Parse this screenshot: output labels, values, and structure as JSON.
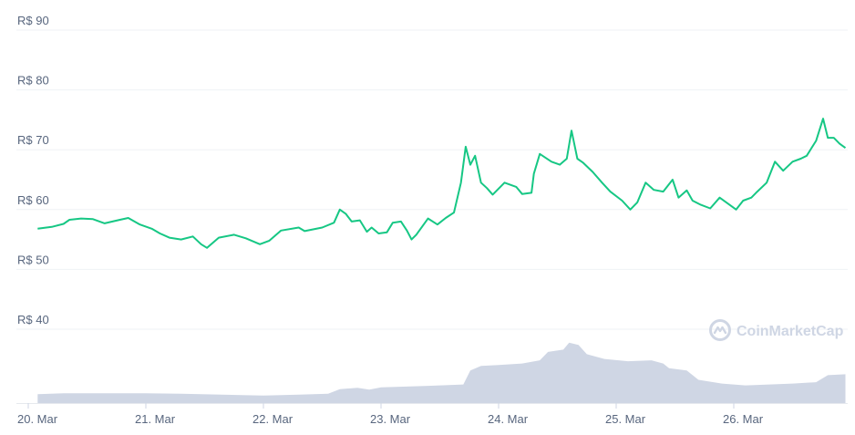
{
  "watermark": {
    "text": "CoinMarketCap",
    "icon": "coinmarketcap-logo-icon"
  },
  "colors": {
    "line": "#16c784",
    "volume": "#cfd6e4",
    "grid": "#eff2f5",
    "text": "#58667e"
  },
  "chart_data": {
    "type": "line",
    "title": "",
    "xlabel": "",
    "ylabel": "",
    "ylim": [
      30,
      90
    ],
    "grid": true,
    "y_ticks": [
      {
        "value": 40,
        "label": "R$ 40"
      },
      {
        "value": 50,
        "label": "R$ 50"
      },
      {
        "value": 60,
        "label": "R$ 60"
      },
      {
        "value": 70,
        "label": "R$ 70"
      },
      {
        "value": 80,
        "label": "R$ 80"
      },
      {
        "value": 90,
        "label": "R$ 90"
      }
    ],
    "x_ticks": [
      "20. Mar",
      "21. Mar",
      "22. Mar",
      "23. Mar",
      "24. Mar",
      "25. Mar",
      "26. Mar"
    ],
    "x_range_days": [
      20.08,
      26.95
    ],
    "series": [
      {
        "type": "line",
        "points": [
          [
            20.08,
            56.8
          ],
          [
            20.2,
            57.1
          ],
          [
            20.3,
            57.6
          ],
          [
            20.35,
            58.3
          ],
          [
            20.45,
            58.5
          ],
          [
            20.55,
            58.4
          ],
          [
            20.65,
            57.7
          ],
          [
            20.78,
            58.3
          ],
          [
            20.85,
            58.6
          ],
          [
            20.95,
            57.5
          ],
          [
            21.05,
            56.8
          ],
          [
            21.12,
            56.0
          ],
          [
            21.2,
            55.3
          ],
          [
            21.3,
            55.0
          ],
          [
            21.4,
            55.5
          ],
          [
            21.47,
            54.2
          ],
          [
            21.52,
            53.6
          ],
          [
            21.62,
            55.3
          ],
          [
            21.75,
            55.8
          ],
          [
            21.85,
            55.2
          ],
          [
            21.97,
            54.2
          ],
          [
            22.05,
            54.8
          ],
          [
            22.15,
            56.5
          ],
          [
            22.3,
            57.0
          ],
          [
            22.35,
            56.4
          ],
          [
            22.5,
            57.0
          ],
          [
            22.6,
            57.8
          ],
          [
            22.65,
            60.0
          ],
          [
            22.7,
            59.3
          ],
          [
            22.75,
            58.0
          ],
          [
            22.82,
            58.2
          ],
          [
            22.88,
            56.3
          ],
          [
            22.92,
            57.0
          ],
          [
            22.98,
            56.0
          ],
          [
            23.05,
            56.2
          ],
          [
            23.1,
            57.8
          ],
          [
            23.17,
            58.0
          ],
          [
            23.22,
            56.5
          ],
          [
            23.26,
            55.0
          ],
          [
            23.3,
            55.8
          ],
          [
            23.4,
            58.5
          ],
          [
            23.48,
            57.5
          ],
          [
            23.55,
            58.6
          ],
          [
            23.62,
            59.5
          ],
          [
            23.68,
            64.5
          ],
          [
            23.72,
            70.5
          ],
          [
            23.76,
            67.5
          ],
          [
            23.8,
            69.0
          ],
          [
            23.85,
            64.5
          ],
          [
            23.9,
            63.6
          ],
          [
            23.95,
            62.5
          ],
          [
            24.05,
            64.5
          ],
          [
            24.15,
            63.8
          ],
          [
            24.2,
            62.6
          ],
          [
            24.28,
            62.8
          ],
          [
            24.3,
            66.0
          ],
          [
            24.35,
            69.3
          ],
          [
            24.45,
            68.0
          ],
          [
            24.52,
            67.5
          ],
          [
            24.58,
            68.5
          ],
          [
            24.62,
            73.2
          ],
          [
            24.67,
            68.5
          ],
          [
            24.72,
            67.8
          ],
          [
            24.8,
            66.3
          ],
          [
            24.88,
            64.5
          ],
          [
            24.95,
            63.0
          ],
          [
            25.05,
            61.5
          ],
          [
            25.12,
            60.0
          ],
          [
            25.18,
            61.2
          ],
          [
            25.25,
            64.5
          ],
          [
            25.32,
            63.3
          ],
          [
            25.4,
            63.0
          ],
          [
            25.48,
            65.0
          ],
          [
            25.53,
            62.0
          ],
          [
            25.6,
            63.2
          ],
          [
            25.65,
            61.5
          ],
          [
            25.72,
            60.8
          ],
          [
            25.8,
            60.2
          ],
          [
            25.88,
            62.0
          ],
          [
            25.95,
            61.0
          ],
          [
            26.02,
            60.0
          ],
          [
            26.08,
            61.5
          ],
          [
            26.15,
            62.0
          ],
          [
            26.2,
            63.0
          ],
          [
            26.28,
            64.5
          ],
          [
            26.35,
            68.0
          ],
          [
            26.42,
            66.5
          ],
          [
            26.5,
            68.0
          ],
          [
            26.57,
            68.5
          ],
          [
            26.62,
            69.0
          ],
          [
            26.7,
            71.5
          ],
          [
            26.76,
            75.2
          ],
          [
            26.8,
            72.0
          ],
          [
            26.85,
            72.0
          ],
          [
            26.9,
            71.0
          ],
          [
            26.95,
            70.3
          ]
        ]
      },
      {
        "type": "area",
        "role": "volume",
        "points": [
          [
            20.08,
            1.9
          ],
          [
            20.3,
            2.1
          ],
          [
            21.0,
            2.1
          ],
          [
            21.3,
            2.0
          ],
          [
            22.0,
            1.6
          ],
          [
            22.3,
            1.8
          ],
          [
            22.55,
            2.0
          ],
          [
            22.65,
            3.0
          ],
          [
            22.8,
            3.3
          ],
          [
            22.9,
            2.9
          ],
          [
            23.0,
            3.4
          ],
          [
            23.4,
            3.7
          ],
          [
            23.7,
            4.0
          ],
          [
            23.76,
            7.0
          ],
          [
            23.85,
            8.0
          ],
          [
            24.0,
            8.2
          ],
          [
            24.2,
            8.5
          ],
          [
            24.35,
            9.2
          ],
          [
            24.42,
            11.0
          ],
          [
            24.55,
            11.5
          ],
          [
            24.6,
            13.0
          ],
          [
            24.68,
            12.5
          ],
          [
            24.75,
            10.5
          ],
          [
            24.9,
            9.5
          ],
          [
            25.1,
            9.0
          ],
          [
            25.3,
            9.2
          ],
          [
            25.4,
            8.5
          ],
          [
            25.45,
            7.5
          ],
          [
            25.6,
            7.0
          ],
          [
            25.7,
            5.0
          ],
          [
            25.9,
            4.2
          ],
          [
            26.1,
            3.8
          ],
          [
            26.3,
            4.0
          ],
          [
            26.5,
            4.2
          ],
          [
            26.7,
            4.5
          ],
          [
            26.8,
            6.0
          ],
          [
            26.95,
            6.2
          ]
        ]
      }
    ]
  }
}
